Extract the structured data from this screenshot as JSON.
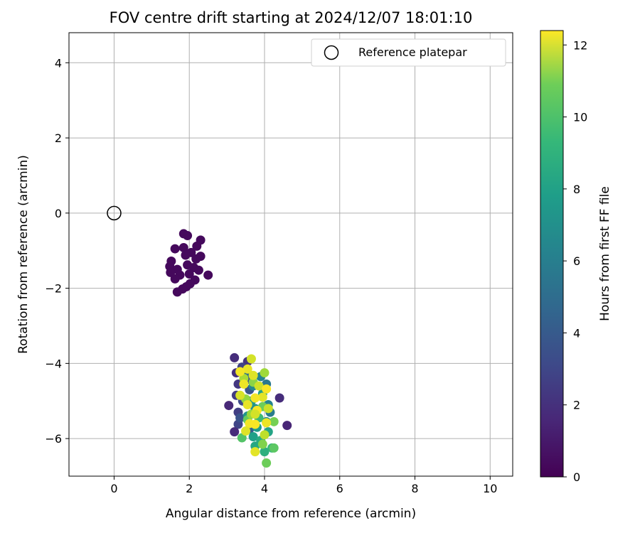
{
  "chart_data": {
    "type": "scatter",
    "title": "FOV centre drift starting at 2024/12/07 18:01:10",
    "xlabel": "Angular distance from reference (arcmin)",
    "ylabel": "Rotation from reference (arcmin)",
    "xlim": [
      -1.2,
      10.6
    ],
    "ylim": [
      -7.0,
      4.8
    ],
    "xticks": [
      0,
      2,
      4,
      6,
      8,
      10
    ],
    "yticks": [
      -6,
      -4,
      -2,
      0,
      2,
      4
    ],
    "grid": true,
    "legend": {
      "placement": "top-right",
      "entries": [
        "Reference platepar"
      ]
    },
    "colorbar": {
      "label": "Hours from first FF file",
      "range": [
        0,
        12.4
      ],
      "ticks": [
        0,
        2,
        4,
        6,
        8,
        10,
        12
      ],
      "colormap": "viridis"
    },
    "reference_point": {
      "x": 0,
      "y": 0
    },
    "points": [
      {
        "x": 1.85,
        "y": -0.55,
        "c": 0.3
      },
      {
        "x": 1.95,
        "y": -0.6,
        "c": 0.3
      },
      {
        "x": 2.3,
        "y": -0.72,
        "c": 0.3
      },
      {
        "x": 2.2,
        "y": -0.88,
        "c": 0.3
      },
      {
        "x": 1.85,
        "y": -0.92,
        "c": 0.3
      },
      {
        "x": 1.62,
        "y": -0.95,
        "c": 0.3
      },
      {
        "x": 2.05,
        "y": -1.05,
        "c": 0.3
      },
      {
        "x": 1.9,
        "y": -1.12,
        "c": 0.3
      },
      {
        "x": 2.3,
        "y": -1.15,
        "c": 0.3
      },
      {
        "x": 2.18,
        "y": -1.22,
        "c": 0.3
      },
      {
        "x": 1.52,
        "y": -1.28,
        "c": 0.3
      },
      {
        "x": 1.48,
        "y": -1.42,
        "c": 0.3
      },
      {
        "x": 1.95,
        "y": -1.38,
        "c": 0.3
      },
      {
        "x": 2.12,
        "y": -1.45,
        "c": 0.3
      },
      {
        "x": 1.68,
        "y": -1.5,
        "c": 0.3
      },
      {
        "x": 2.25,
        "y": -1.52,
        "c": 0.3
      },
      {
        "x": 1.5,
        "y": -1.58,
        "c": 0.3
      },
      {
        "x": 2.0,
        "y": -1.62,
        "c": 0.3
      },
      {
        "x": 1.75,
        "y": -1.65,
        "c": 0.3
      },
      {
        "x": 2.5,
        "y": -1.65,
        "c": 0.3
      },
      {
        "x": 1.62,
        "y": -1.75,
        "c": 0.3
      },
      {
        "x": 2.15,
        "y": -1.78,
        "c": 0.3
      },
      {
        "x": 2.02,
        "y": -1.88,
        "c": 0.3
      },
      {
        "x": 1.92,
        "y": -1.96,
        "c": 0.3
      },
      {
        "x": 1.82,
        "y": -2.02,
        "c": 0.3
      },
      {
        "x": 1.68,
        "y": -2.1,
        "c": 0.3
      },
      {
        "x": 3.2,
        "y": -3.85,
        "c": 1.6
      },
      {
        "x": 3.55,
        "y": -3.95,
        "c": 1.8
      },
      {
        "x": 3.25,
        "y": -4.25,
        "c": 1.7
      },
      {
        "x": 3.3,
        "y": -4.55,
        "c": 2.0
      },
      {
        "x": 3.25,
        "y": -4.85,
        "c": 2.2
      },
      {
        "x": 3.05,
        "y": -5.12,
        "c": 1.4
      },
      {
        "x": 3.3,
        "y": -5.3,
        "c": 2.3
      },
      {
        "x": 3.3,
        "y": -5.62,
        "c": 2.6
      },
      {
        "x": 3.2,
        "y": -5.82,
        "c": 1.5
      },
      {
        "x": 4.4,
        "y": -4.92,
        "c": 1.6
      },
      {
        "x": 4.6,
        "y": -5.65,
        "c": 1.3
      },
      {
        "x": 3.4,
        "y": -4.1,
        "c": 2.5
      },
      {
        "x": 3.5,
        "y": -4.45,
        "c": 3.0
      },
      {
        "x": 3.42,
        "y": -5.0,
        "c": 2.8
      },
      {
        "x": 3.6,
        "y": -4.7,
        "c": 3.3
      },
      {
        "x": 3.35,
        "y": -5.45,
        "c": 3.2
      },
      {
        "x": 3.6,
        "y": -5.75,
        "c": 3.8
      },
      {
        "x": 3.55,
        "y": -4.25,
        "c": 4.5
      },
      {
        "x": 3.9,
        "y": -4.35,
        "c": 5.5
      },
      {
        "x": 3.7,
        "y": -4.6,
        "c": 5.8
      },
      {
        "x": 4.05,
        "y": -4.55,
        "c": 5.0
      },
      {
        "x": 3.5,
        "y": -4.95,
        "c": 4.8
      },
      {
        "x": 4.1,
        "y": -5.1,
        "c": 5.6
      },
      {
        "x": 3.75,
        "y": -5.2,
        "c": 6.2
      },
      {
        "x": 4.15,
        "y": -5.3,
        "c": 5.2
      },
      {
        "x": 3.55,
        "y": -5.4,
        "c": 6.4
      },
      {
        "x": 4.05,
        "y": -5.55,
        "c": 6.0
      },
      {
        "x": 3.8,
        "y": -5.7,
        "c": 6.8
      },
      {
        "x": 4.1,
        "y": -5.82,
        "c": 7.2
      },
      {
        "x": 3.7,
        "y": -5.95,
        "c": 7.0
      },
      {
        "x": 3.9,
        "y": -6.05,
        "c": 7.6
      },
      {
        "x": 3.75,
        "y": -6.2,
        "c": 7.4
      },
      {
        "x": 4.0,
        "y": -6.35,
        "c": 7.8
      },
      {
        "x": 4.2,
        "y": -6.25,
        "c": 8.2
      },
      {
        "x": 3.65,
        "y": -5.0,
        "c": 6.6
      },
      {
        "x": 3.95,
        "y": -4.8,
        "c": 7.0
      },
      {
        "x": 3.85,
        "y": -5.45,
        "c": 8.4
      },
      {
        "x": 3.4,
        "y": -5.98,
        "c": 9.0
      },
      {
        "x": 3.55,
        "y": -5.5,
        "c": 9.4
      },
      {
        "x": 3.95,
        "y": -5.15,
        "c": 9.6
      },
      {
        "x": 4.25,
        "y": -5.55,
        "c": 9.8
      },
      {
        "x": 4.25,
        "y": -6.25,
        "c": 9.2
      },
      {
        "x": 4.05,
        "y": -6.65,
        "c": 9.6
      },
      {
        "x": 3.95,
        "y": -6.15,
        "c": 10.0
      },
      {
        "x": 3.5,
        "y": -4.95,
        "c": 10.4
      },
      {
        "x": 3.7,
        "y": -4.5,
        "c": 10.2
      },
      {
        "x": 4.0,
        "y": -4.25,
        "c": 10.6
      },
      {
        "x": 3.45,
        "y": -4.4,
        "c": 10.8
      },
      {
        "x": 3.65,
        "y": -5.35,
        "c": 10.5
      },
      {
        "x": 3.65,
        "y": -3.88,
        "c": 11.6
      },
      {
        "x": 3.55,
        "y": -4.15,
        "c": 12.0
      },
      {
        "x": 3.35,
        "y": -4.22,
        "c": 12.2
      },
      {
        "x": 3.7,
        "y": -4.32,
        "c": 11.8
      },
      {
        "x": 3.45,
        "y": -4.55,
        "c": 12.1
      },
      {
        "x": 3.85,
        "y": -4.6,
        "c": 11.5
      },
      {
        "x": 4.05,
        "y": -4.68,
        "c": 12.3
      },
      {
        "x": 3.95,
        "y": -4.9,
        "c": 11.9
      },
      {
        "x": 3.75,
        "y": -4.92,
        "c": 12.2
      },
      {
        "x": 3.35,
        "y": -4.85,
        "c": 11.7
      },
      {
        "x": 3.55,
        "y": -5.1,
        "c": 12.0
      },
      {
        "x": 4.1,
        "y": -5.2,
        "c": 11.4
      },
      {
        "x": 3.8,
        "y": -5.25,
        "c": 12.3
      },
      {
        "x": 3.6,
        "y": -5.6,
        "c": 12.2
      },
      {
        "x": 3.75,
        "y": -5.35,
        "c": 11.6
      },
      {
        "x": 4.05,
        "y": -5.58,
        "c": 12.1
      },
      {
        "x": 3.5,
        "y": -5.8,
        "c": 11.8
      },
      {
        "x": 3.75,
        "y": -5.62,
        "c": 12.3
      },
      {
        "x": 4.0,
        "y": -5.9,
        "c": 11.2
      },
      {
        "x": 3.75,
        "y": -6.35,
        "c": 11.9
      }
    ]
  }
}
